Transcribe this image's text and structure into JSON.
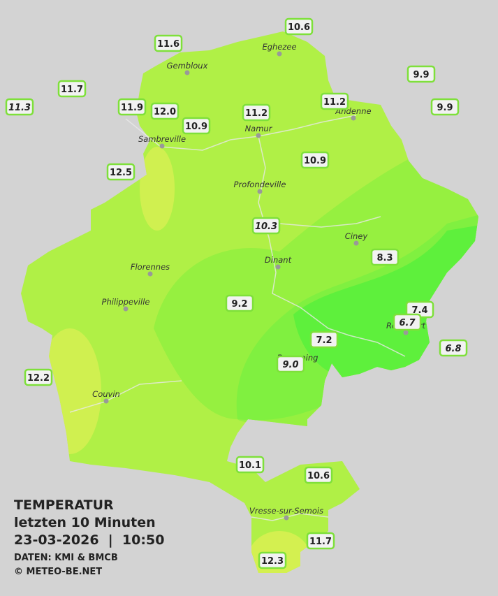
{
  "header": {
    "title": "TEMPERATUR",
    "subtitle": "letzten 10 Minuten",
    "datetime": "23-03-2026  |  10:50",
    "source": "DATEN: KMI & BMCB",
    "copyright": "© METEO-BE.NET"
  },
  "towns": [
    "Eghezee",
    "Gembloux",
    "Andenne",
    "Namur",
    "Sambreville",
    "Profondeville",
    "Ciney",
    "Florennes",
    "Dinant",
    "Philippeville",
    "Rochefort",
    "Beauraing",
    "Couvin",
    "Vresse-sur-Semois"
  ],
  "stations": [
    {
      "label": "10.6"
    },
    {
      "label": "11.6"
    },
    {
      "label": "9.9"
    },
    {
      "label": "11.7"
    },
    {
      "label": "11.3",
      "italic": true
    },
    {
      "label": "11.9"
    },
    {
      "label": "12.0"
    },
    {
      "label": "11.2"
    },
    {
      "label": "11.2"
    },
    {
      "label": "9.9"
    },
    {
      "label": "10.9"
    },
    {
      "label": "10.9"
    },
    {
      "label": "12.5"
    },
    {
      "label": "10.3",
      "italic": true
    },
    {
      "label": "8.3"
    },
    {
      "label": "9.2"
    },
    {
      "label": "7.4"
    },
    {
      "label": "6.7",
      "italic": true
    },
    {
      "label": "7.2"
    },
    {
      "label": "6.8",
      "italic": true
    },
    {
      "label": "9.0",
      "italic": true
    },
    {
      "label": "12.2"
    },
    {
      "label": "10.1"
    },
    {
      "label": "10.6"
    },
    {
      "label": "11.7"
    },
    {
      "label": "12.3"
    }
  ]
}
